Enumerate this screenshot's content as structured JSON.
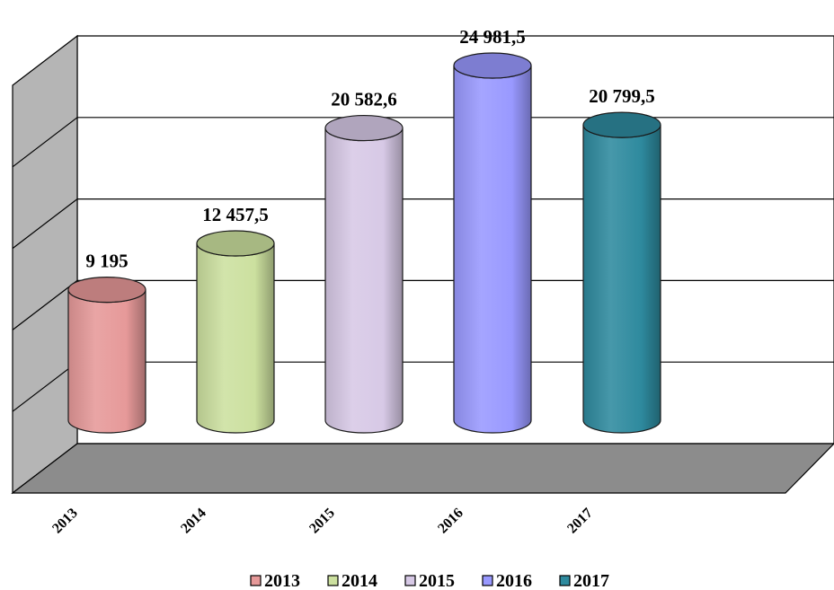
{
  "chart_data": {
    "type": "bar",
    "style": "3d-cylinder",
    "categories": [
      "2013",
      "2014",
      "2015",
      "2016",
      "2017"
    ],
    "values": [
      9195,
      12457.5,
      20582.6,
      24981.5,
      20799.5
    ],
    "data_labels": [
      "9 195",
      "12 457,5",
      "20 582,6",
      "24 981,5",
      "20 799,5"
    ],
    "legend": [
      "2013",
      "2014",
      "2015",
      "2016",
      "2017"
    ],
    "colors": [
      "#E69999",
      "#CCE09F",
      "#D7C9E6",
      "#9999FF",
      "#2E8A9E"
    ],
    "title": "",
    "xlabel": "",
    "ylabel": "",
    "ylim": [
      0,
      25000
    ],
    "grid": true,
    "legend_position": "bottom"
  }
}
